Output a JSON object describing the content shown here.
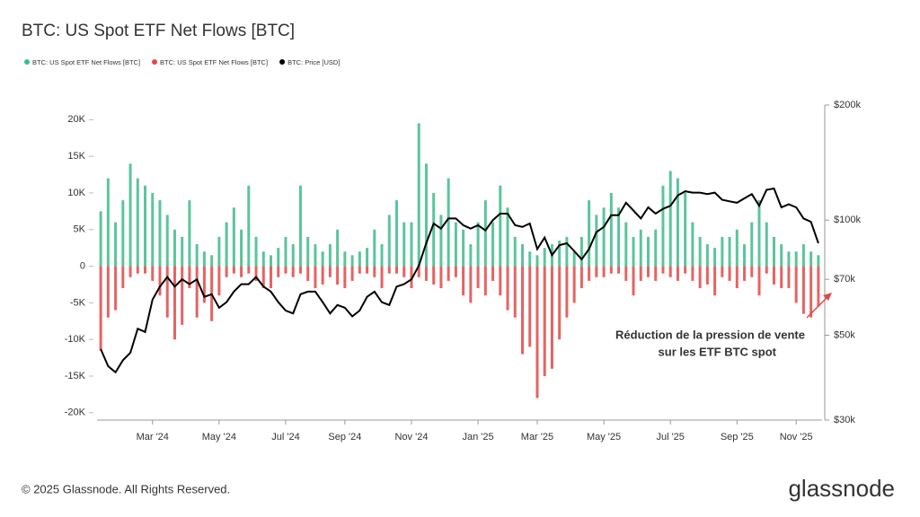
{
  "chart_data": {
    "type": "bar",
    "title": "BTC: US Spot ETF Net Flows [BTC]",
    "categories": [
      null,
      null,
      null,
      null,
      null,
      null,
      null,
      "Mar '24",
      null,
      null,
      null,
      null,
      null,
      null,
      null,
      null,
      "May '24",
      null,
      null,
      null,
      null,
      null,
      null,
      null,
      null,
      "Jul '24",
      null,
      null,
      null,
      null,
      null,
      null,
      null,
      "Sep '24",
      null,
      null,
      null,
      null,
      null,
      null,
      null,
      null,
      "Nov '24",
      null,
      null,
      null,
      null,
      null,
      null,
      null,
      null,
      "Jan '25",
      null,
      null,
      null,
      null,
      null,
      null,
      null,
      "Mar '25",
      null,
      null,
      null,
      null,
      null,
      null,
      null,
      null,
      "May '25",
      null,
      null,
      null,
      null,
      null,
      null,
      null,
      null,
      "Jul '25",
      null,
      null,
      null,
      null,
      null,
      null,
      null,
      null,
      "Sep '25",
      null,
      null,
      null,
      null,
      null,
      null,
      null,
      "Nov '25",
      null,
      null,
      null
    ],
    "series": [
      {
        "name": "BTC: US Spot ETF Net Flows [BTC]",
        "type": "bar",
        "axis": "y",
        "color": "#3dbb8a",
        "values": [
          7500,
          12000,
          6000,
          9000,
          14000,
          12000,
          11000,
          10000,
          9000,
          7000,
          5000,
          4000,
          9000,
          3000,
          2000,
          1500,
          4000,
          6000,
          8000,
          5000,
          11000,
          4000,
          2000,
          1500,
          2500,
          4000,
          3000,
          11000,
          4000,
          3000,
          2000,
          3000,
          5000,
          2000,
          1500,
          2000,
          2500,
          5000,
          3000,
          7000,
          9000,
          6000,
          6000,
          19500,
          14000,
          10000,
          7000,
          12000,
          6000,
          5000,
          3000,
          6000,
          9000,
          6000,
          11000,
          8000,
          4000,
          3000,
          2000,
          1500,
          2500,
          3000,
          3500,
          4000,
          2000,
          4000,
          9000,
          7000,
          8000,
          10000,
          8000,
          6000,
          4000,
          5000,
          4000,
          5000,
          11000,
          13000,
          12000,
          10000,
          6000,
          4000,
          3000,
          2500,
          4000,
          4000,
          5000,
          3000,
          6000,
          9000,
          6000,
          4000,
          3000,
          2000,
          2000,
          3000,
          2000,
          1500
        ]
      },
      {
        "name": "BTC: US Spot ETF Net Flows [BTC]",
        "type": "bar",
        "axis": "y",
        "color": "#e04848",
        "values": [
          -11500,
          -7000,
          -6000,
          -3000,
          -1500,
          -1000,
          -1000,
          -2000,
          -4000,
          -7000,
          -10000,
          -8000,
          -3000,
          -7000,
          -5000,
          -7500,
          -4000,
          -1500,
          -1000,
          -1500,
          -1000,
          -2000,
          -3000,
          -3000,
          -1500,
          -1000,
          -1500,
          -1000,
          -2000,
          -3000,
          -2500,
          -1500,
          -2500,
          -3000,
          -2000,
          -1000,
          -1000,
          -1500,
          -3000,
          -1000,
          -1000,
          -1500,
          -3000,
          -1500,
          -2000,
          -2500,
          -3000,
          -2000,
          -1500,
          -4000,
          -5000,
          -3000,
          -4000,
          -2000,
          -4000,
          -6000,
          -7000,
          -12000,
          -11000,
          -18000,
          -15000,
          -14000,
          -10000,
          -7000,
          -5000,
          -3000,
          -2000,
          -1500,
          -1500,
          -1000,
          -1000,
          -2000,
          -4000,
          -2000,
          -1500,
          -2000,
          -1000,
          -1500,
          -2000,
          -1000,
          -2000,
          -3000,
          -2500,
          -4000,
          -1500,
          -2000,
          -3000,
          -2000,
          -1500,
          -4000,
          -1000,
          -2500,
          -3000,
          -3000,
          -5000,
          -6500,
          -7000,
          -5500
        ]
      },
      {
        "name": "BTC: Price [USD]",
        "type": "line",
        "axis": "y2",
        "color": "#000000",
        "values": [
          46000,
          41500,
          40000,
          43000,
          45000,
          52000,
          51000,
          62000,
          67000,
          71000,
          67000,
          70000,
          68000,
          70000,
          63000,
          64000,
          59000,
          61000,
          65000,
          68000,
          68000,
          71000,
          67000,
          65000,
          61000,
          58000,
          57000,
          64000,
          65000,
          65000,
          61000,
          57000,
          60000,
          59000,
          56000,
          58000,
          63000,
          65000,
          61000,
          60000,
          67000,
          68000,
          70000,
          76000,
          87000,
          98000,
          95000,
          101000,
          101000,
          97000,
          95000,
          97000,
          94000,
          100000,
          104000,
          104000,
          97000,
          96000,
          98000,
          84000,
          90000,
          81000,
          86000,
          87000,
          83000,
          79000,
          84000,
          93000,
          96000,
          103000,
          103000,
          111000,
          106000,
          101000,
          108000,
          104000,
          107000,
          109000,
          116000,
          119000,
          118000,
          118000,
          117000,
          118000,
          113000,
          112000,
          111000,
          114000,
          117000,
          109000,
          120000,
          121000,
          108000,
          110000,
          108000,
          101000,
          99000,
          87000
        ]
      }
    ],
    "ylim": [
      -21000,
      22000
    ],
    "yticks": [
      {
        "value": -20000,
        "label": "-20K"
      },
      {
        "value": -15000,
        "label": "-15K"
      },
      {
        "value": -10000,
        "label": "-10K"
      },
      {
        "value": -5000,
        "label": "-5K"
      },
      0,
      {
        "value": 5000,
        "label": "5K"
      },
      {
        "value": 10000,
        "label": "10K"
      },
      {
        "value": 15000,
        "label": "15K"
      },
      {
        "value": 20000,
        "label": "20K"
      }
    ],
    "y2lim": [
      30000,
      200000
    ],
    "y2scale": "log",
    "y2ticks": [
      {
        "value": 30000,
        "label": "$30k"
      },
      {
        "value": 50000,
        "label": "$50k"
      },
      {
        "value": 70000,
        "label": "$70k"
      },
      {
        "value": 100000,
        "label": "$100k"
      },
      {
        "value": 200000,
        "label": "$200k"
      }
    ],
    "annotation": [
      "Réduction de la pression de vente",
      "sur les ETF BTC spot"
    ],
    "footer": "© 2025 Glassnode. All Rights Reserved.",
    "brand": "glassnode"
  }
}
